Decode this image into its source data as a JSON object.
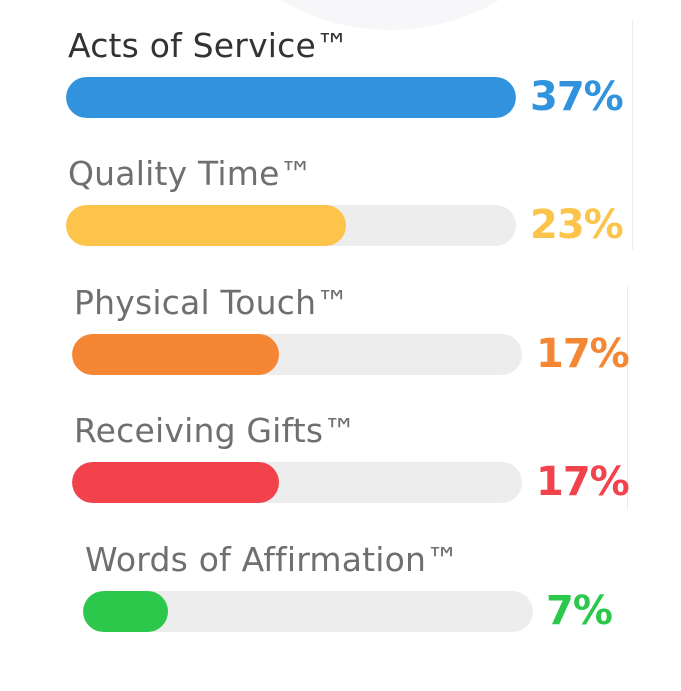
{
  "chart_data": {
    "type": "bar",
    "orientation": "horizontal",
    "categories": [
      "Acts of Service™",
      "Quality Time™",
      "Physical Touch™",
      "Receiving Gifts™",
      "Words of Affirmation™"
    ],
    "values": [
      37,
      23,
      17,
      17,
      7
    ],
    "value_labels": [
      "37%",
      "23%",
      "17%",
      "17%",
      "7%"
    ],
    "colors": [
      "#3193dd",
      "#fcc44a",
      "#f58734",
      "#f2424b",
      "#2cc84b"
    ],
    "label_colors": [
      "#333333",
      "#6f6f6f",
      "#6f6f6f",
      "#6f6f6f",
      "#6f6f6f"
    ],
    "track_color": "#ededed",
    "xlim": [
      0,
      37
    ]
  }
}
